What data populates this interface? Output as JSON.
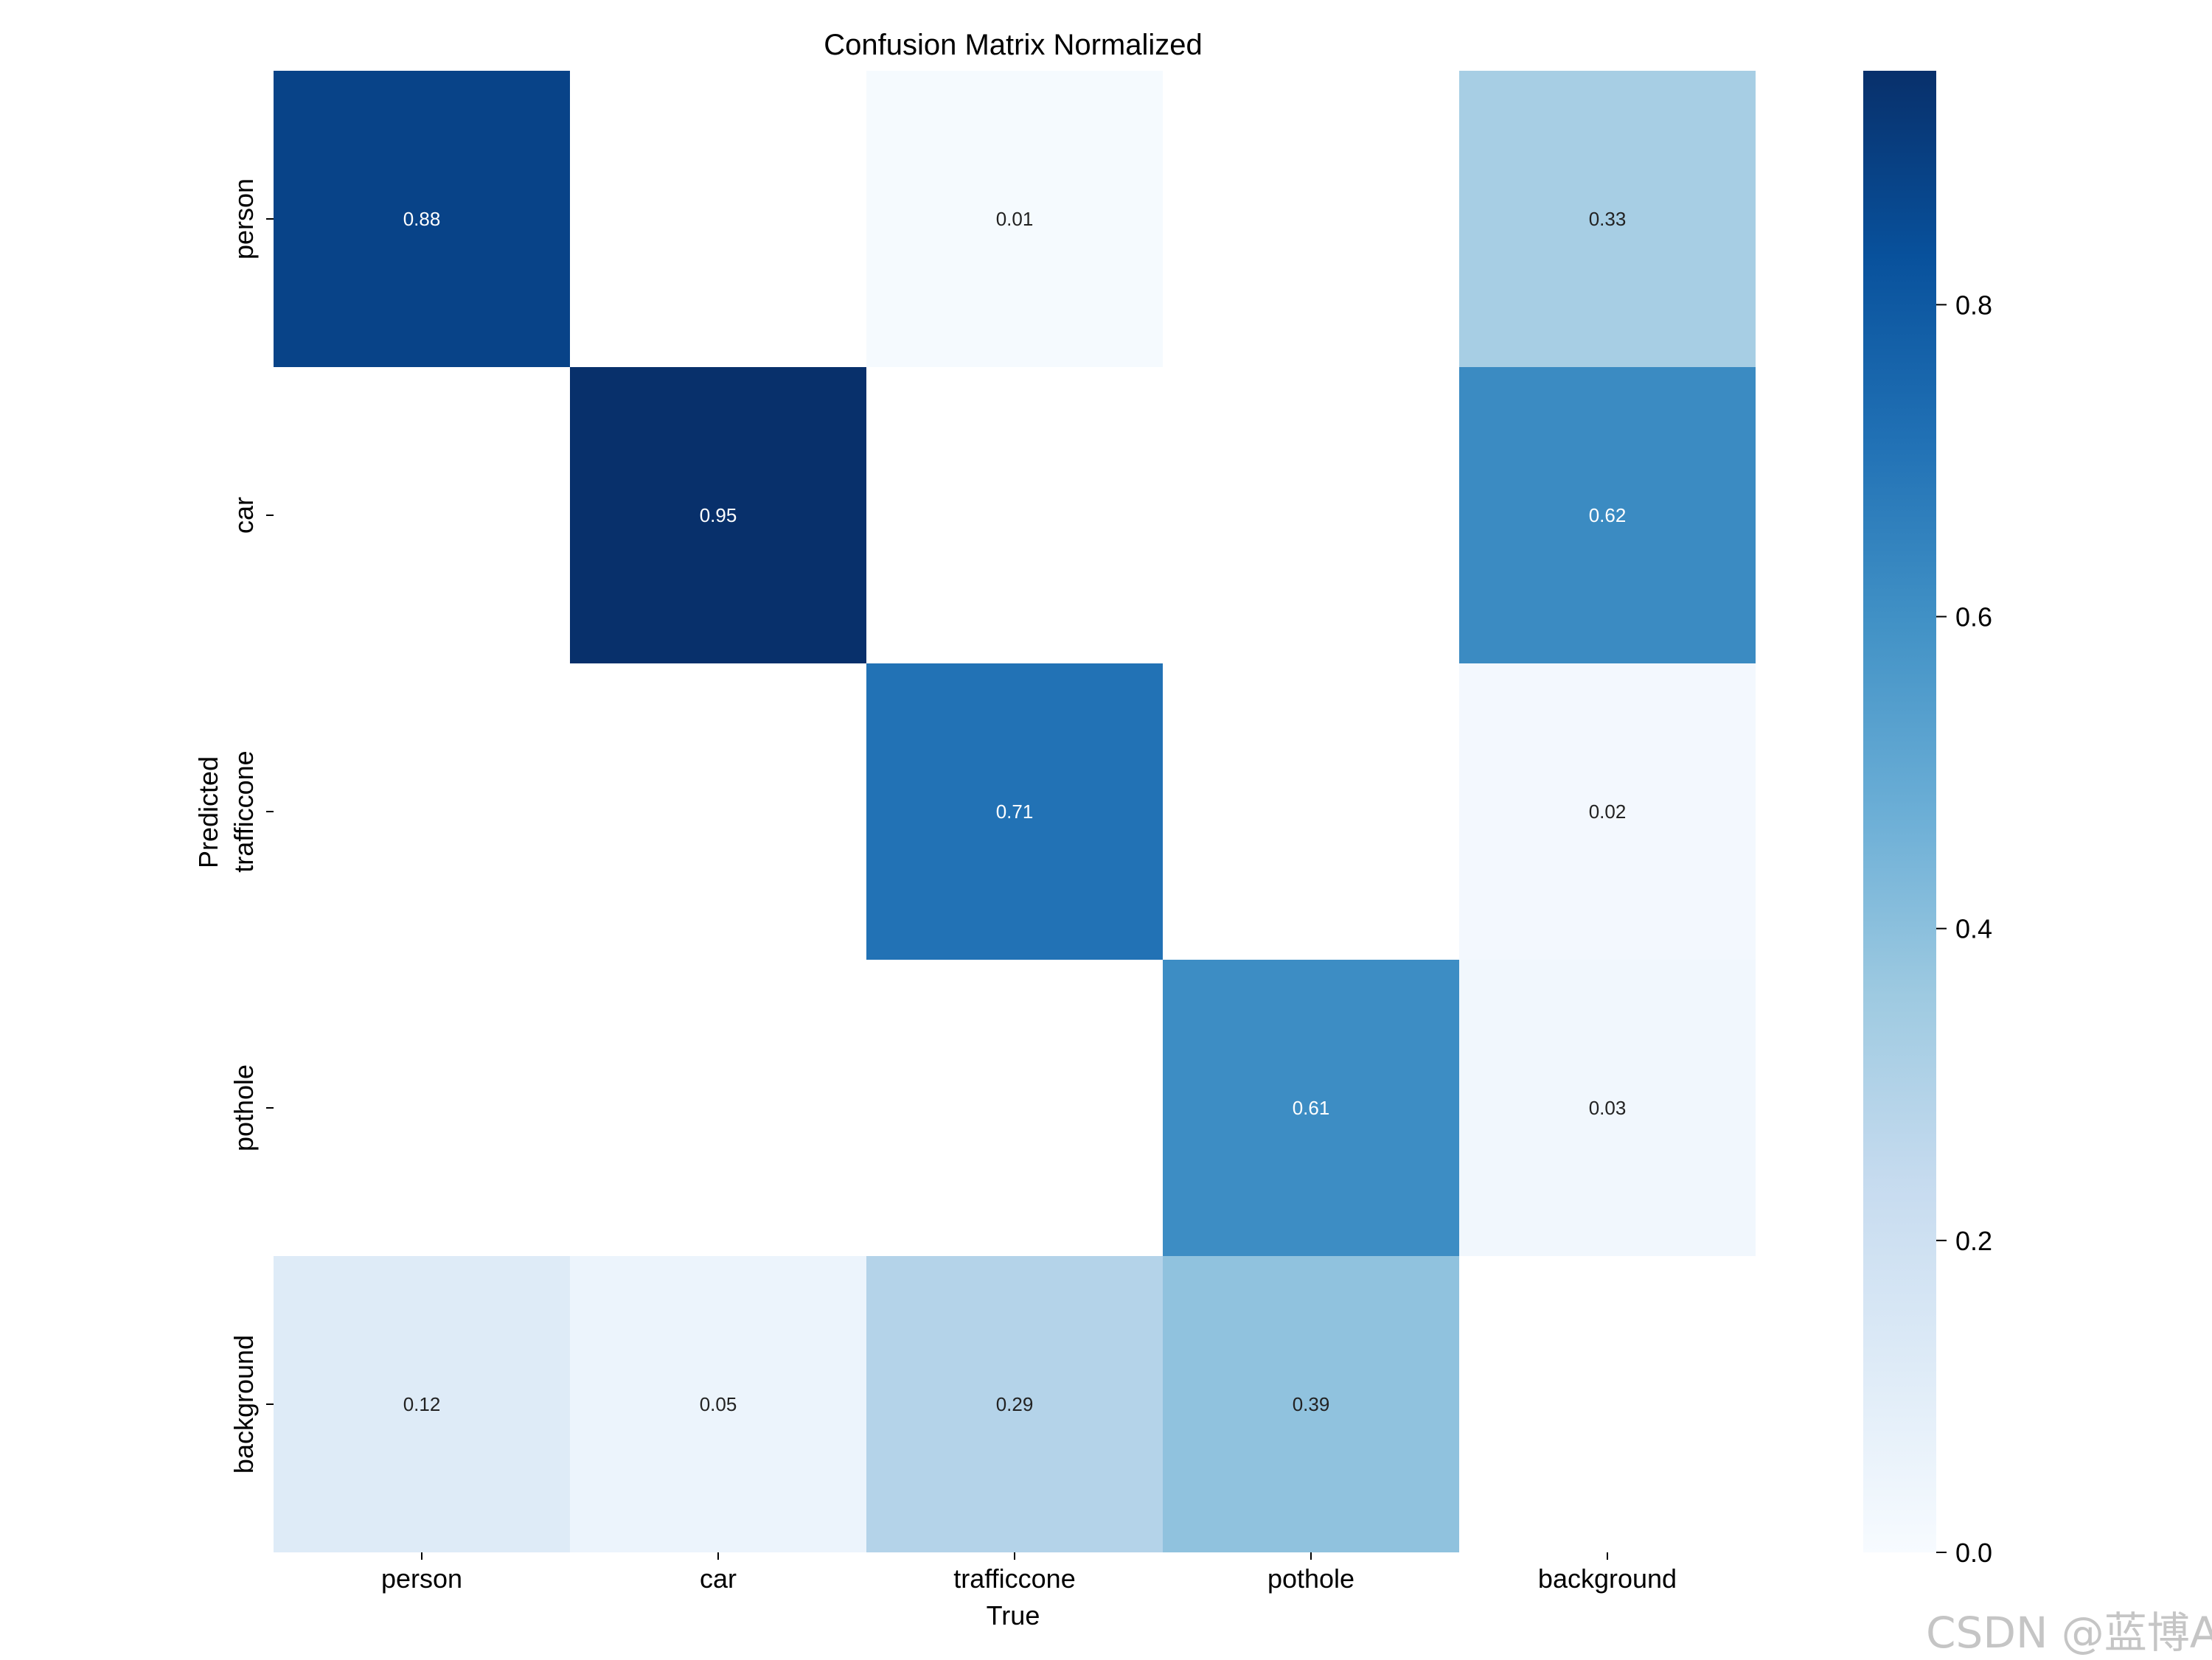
{
  "chart_data": {
    "type": "heatmap",
    "title": "Confusion Matrix Normalized",
    "xlabel": "True",
    "ylabel": "Predicted",
    "x_categories": [
      "person",
      "car",
      "trafficcone",
      "pothole",
      "background"
    ],
    "y_categories": [
      "person",
      "car",
      "trafficcone",
      "pothole",
      "background"
    ],
    "values": [
      [
        0.88,
        null,
        0.01,
        null,
        0.33
      ],
      [
        null,
        0.95,
        null,
        null,
        0.62
      ],
      [
        null,
        null,
        0.71,
        null,
        0.02
      ],
      [
        null,
        null,
        null,
        0.61,
        0.03
      ],
      [
        0.12,
        0.05,
        0.29,
        0.39,
        null
      ]
    ],
    "colormap": "Blues",
    "colorbar": {
      "vmin": 0.0,
      "vmax": 0.95,
      "ticks": [
        0.0,
        0.2,
        0.4,
        0.6,
        0.8
      ],
      "tick_labels": [
        "0.0",
        "0.2",
        "0.4",
        "0.6",
        "0.8"
      ]
    }
  },
  "watermark": "CSDN @蓝博AI"
}
